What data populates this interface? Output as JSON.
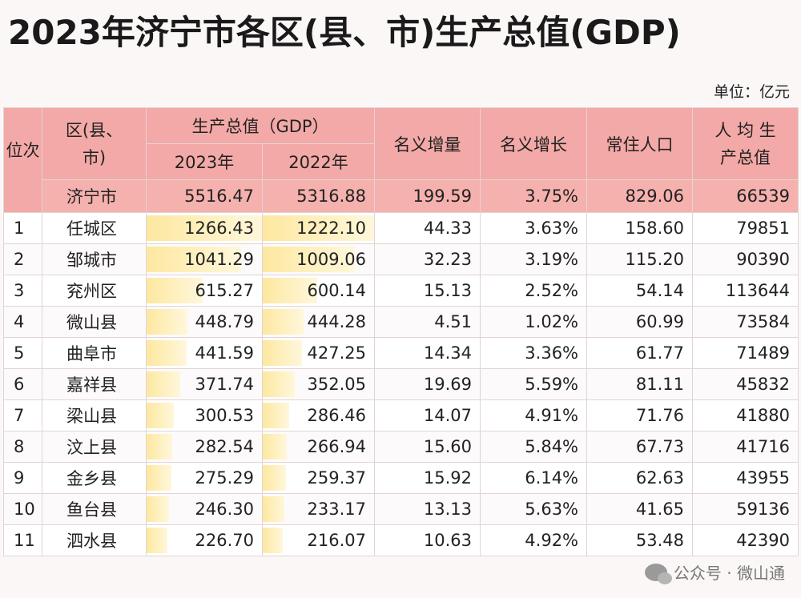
{
  "title": "2023年济宁市各区(县、市)生产总值(GDP)",
  "unit": "单位：亿元",
  "headers": {
    "rank": "位次",
    "region": "区(县、市)",
    "gdp_group": "生产总值（GDP）",
    "year2023": "2023年",
    "year2022": "2022年",
    "nominal_increase": "名义增量",
    "nominal_growth": "名义增长",
    "population": "常住人口",
    "per_capita": "人 均 生产总值"
  },
  "total": {
    "name": "济宁市",
    "gdp2023": "5516.47",
    "gdp2022": "5316.88",
    "increase": "199.59",
    "growth": "3.75%",
    "population": "829.06",
    "per_capita": "66539"
  },
  "rows": [
    {
      "rank": "1",
      "name": "任城区",
      "gdp2023": "1266.43",
      "gdp2022": "1222.10",
      "increase": "44.33",
      "growth": "3.63%",
      "population": "158.60",
      "per_capita": "79851"
    },
    {
      "rank": "2",
      "name": "邹城市",
      "gdp2023": "1041.29",
      "gdp2022": "1009.06",
      "increase": "32.23",
      "growth": "3.19%",
      "population": "115.20",
      "per_capita": "90390"
    },
    {
      "rank": "3",
      "name": "兖州区",
      "gdp2023": "615.27",
      "gdp2022": "600.14",
      "increase": "15.13",
      "growth": "2.52%",
      "population": "54.14",
      "per_capita": "113644"
    },
    {
      "rank": "4",
      "name": "微山县",
      "gdp2023": "448.79",
      "gdp2022": "444.28",
      "increase": "4.51",
      "growth": "1.02%",
      "population": "60.99",
      "per_capita": "73584"
    },
    {
      "rank": "5",
      "name": "曲阜市",
      "gdp2023": "441.59",
      "gdp2022": "427.25",
      "increase": "14.34",
      "growth": "3.36%",
      "population": "61.77",
      "per_capita": "71489"
    },
    {
      "rank": "6",
      "name": "嘉祥县",
      "gdp2023": "371.74",
      "gdp2022": "352.05",
      "increase": "19.69",
      "growth": "5.59%",
      "population": "81.11",
      "per_capita": "45832"
    },
    {
      "rank": "7",
      "name": "梁山县",
      "gdp2023": "300.53",
      "gdp2022": "286.46",
      "increase": "14.07",
      "growth": "4.91%",
      "population": "71.76",
      "per_capita": "41880"
    },
    {
      "rank": "8",
      "name": "汶上县",
      "gdp2023": "282.54",
      "gdp2022": "266.94",
      "increase": "15.60",
      "growth": "5.84%",
      "population": "67.73",
      "per_capita": "41716"
    },
    {
      "rank": "9",
      "name": "金乡县",
      "gdp2023": "275.29",
      "gdp2022": "259.37",
      "increase": "15.92",
      "growth": "6.14%",
      "population": "62.63",
      "per_capita": "43955"
    },
    {
      "rank": "10",
      "name": "鱼台县",
      "gdp2023": "246.30",
      "gdp2022": "233.17",
      "increase": "13.13",
      "growth": "5.63%",
      "population": "41.65",
      "per_capita": "59136"
    },
    {
      "rank": "11",
      "name": "泗水县",
      "gdp2023": "226.70",
      "gdp2022": "216.07",
      "increase": "10.63",
      "growth": "4.92%",
      "population": "53.48",
      "per_capita": "42390"
    }
  ],
  "watermark": "公众号 · 微山通",
  "colors": {
    "header_bg": "#f3a9a7",
    "bar_fill": "#fde8a0"
  }
}
